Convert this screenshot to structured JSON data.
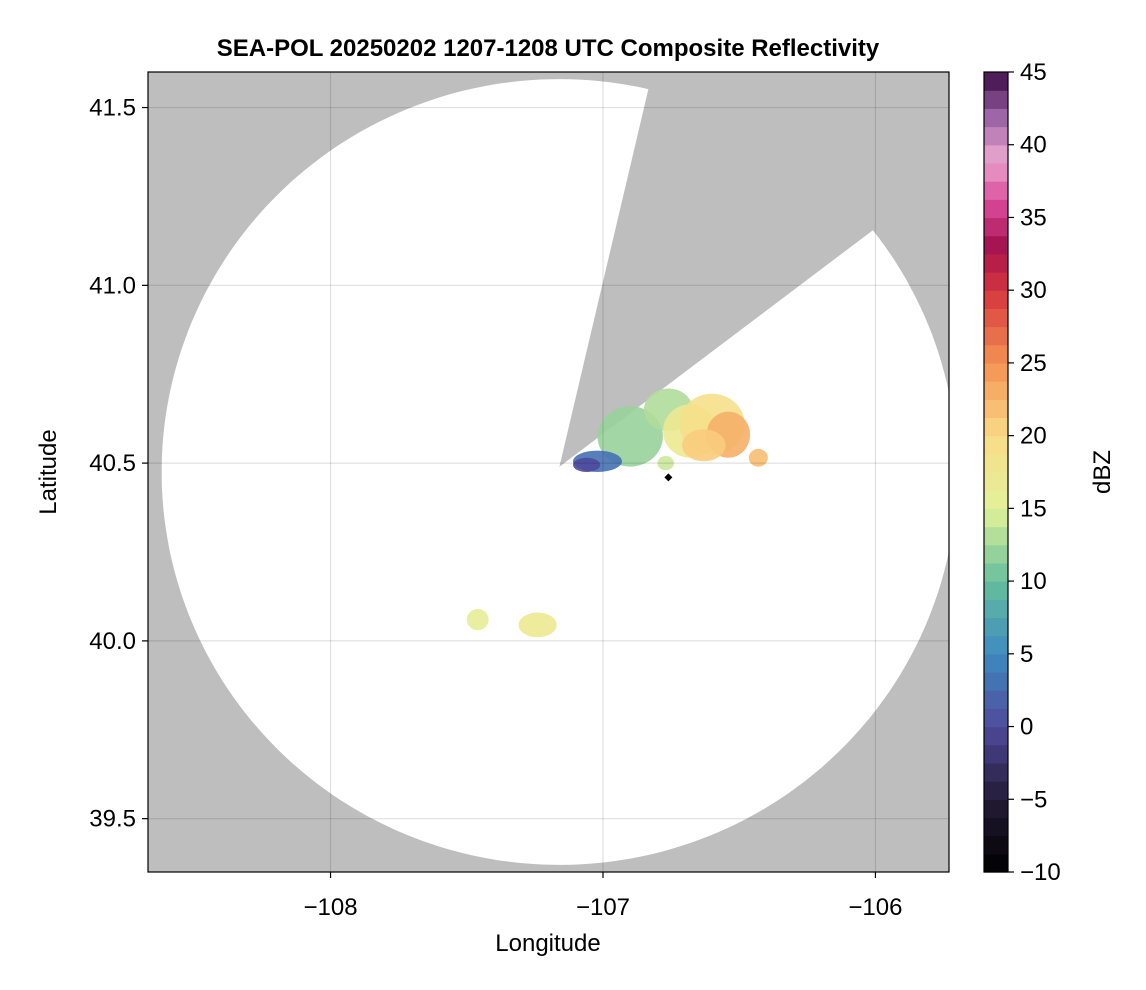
{
  "chart_data": {
    "type": "heatmap",
    "title": "SEA-POL 20250202 1207-1208 UTC Composite Reflectivity",
    "xlabel": "Longitude",
    "ylabel": "Latitude",
    "xlim": [
      -108.67,
      -105.73
    ],
    "ylim": [
      39.35,
      41.6
    ],
    "x_ticks": [
      -108,
      -107,
      -106
    ],
    "x_tick_labels": [
      "−108",
      "−107",
      "−106"
    ],
    "y_ticks": [
      39.5,
      40.0,
      40.5,
      41.0,
      41.5
    ],
    "y_tick_labels": [
      "39.5",
      "40.0",
      "40.5",
      "41.0",
      "41.5"
    ],
    "grid": true,
    "background_color": "#bebebe",
    "radar": {
      "center_lon": -107.16,
      "center_lat": 40.49,
      "range_edge_lons": [
        -108.62,
        -105.7
      ],
      "range_edge_lats": [
        39.37,
        41.58
      ],
      "missing_sector": {
        "edge_points": [
          [
            -106.84,
            41.53
          ],
          [
            -106.07,
            41.12
          ]
        ]
      }
    },
    "colorbar": {
      "label": "dBZ",
      "min": -10,
      "max": 45,
      "step": 1.25,
      "ticks": [
        -10,
        -5,
        0,
        5,
        10,
        15,
        20,
        25,
        30,
        35,
        40,
        45
      ],
      "tick_labels": [
        "−10",
        "−5",
        "0",
        "5",
        "10",
        "15",
        "20",
        "25",
        "30",
        "35",
        "40",
        "45"
      ],
      "colormap_stops": [
        {
          "value": -10,
          "color": "#000000"
        },
        {
          "value": -5,
          "color": "#231b36"
        },
        {
          "value": 0,
          "color": "#4f4a9c"
        },
        {
          "value": 5,
          "color": "#3e8bc1"
        },
        {
          "value": 10,
          "color": "#66be9c"
        },
        {
          "value": 15,
          "color": "#e2f299"
        },
        {
          "value": 20,
          "color": "#fadb88"
        },
        {
          "value": 25,
          "color": "#f49152"
        },
        {
          "value": 30,
          "color": "#d5353e"
        },
        {
          "value": 33,
          "color": "#a5124f"
        },
        {
          "value": 36,
          "color": "#d9489a"
        },
        {
          "value": 39,
          "color": "#eaa6cf"
        },
        {
          "value": 42,
          "color": "#9c63a5"
        },
        {
          "value": 45,
          "color": "#3c0b48"
        }
      ]
    },
    "echo_regions": [
      {
        "lon": -106.9,
        "lat": 40.575,
        "lon_radius": 0.12,
        "lat_radius": 0.085,
        "dbz": 12
      },
      {
        "lon": -106.76,
        "lat": 40.65,
        "lon_radius": 0.09,
        "lat_radius": 0.06,
        "dbz": 13
      },
      {
        "lon": -106.68,
        "lat": 40.59,
        "lon_radius": 0.1,
        "lat_radius": 0.075,
        "dbz": 17
      },
      {
        "lon": -106.6,
        "lat": 40.61,
        "lon_radius": 0.12,
        "lat_radius": 0.085,
        "dbz": 19
      },
      {
        "lon": -106.54,
        "lat": 40.58,
        "lon_radius": 0.08,
        "lat_radius": 0.065,
        "dbz": 23
      },
      {
        "lon": -106.63,
        "lat": 40.55,
        "lon_radius": 0.08,
        "lat_radius": 0.045,
        "dbz": 21
      },
      {
        "lon": -106.43,
        "lat": 40.515,
        "lon_radius": 0.035,
        "lat_radius": 0.025,
        "dbz": 22
      },
      {
        "lon": -106.77,
        "lat": 40.5,
        "lon_radius": 0.03,
        "lat_radius": 0.02,
        "dbz": 14
      },
      {
        "lon": -107.02,
        "lat": 40.505,
        "lon_radius": 0.09,
        "lat_radius": 0.03,
        "dbz": 3
      },
      {
        "lon": -107.06,
        "lat": 40.495,
        "lon_radius": 0.05,
        "lat_radius": 0.02,
        "dbz": 0
      },
      {
        "lon": -107.24,
        "lat": 40.045,
        "lon_radius": 0.07,
        "lat_radius": 0.035,
        "dbz": 17
      },
      {
        "lon": -107.46,
        "lat": 40.06,
        "lon_radius": 0.04,
        "lat_radius": 0.03,
        "dbz": 16
      }
    ],
    "markers": [
      {
        "lon": -106.76,
        "lat": 40.46,
        "shape": "diamond",
        "color": "#000000"
      }
    ]
  }
}
